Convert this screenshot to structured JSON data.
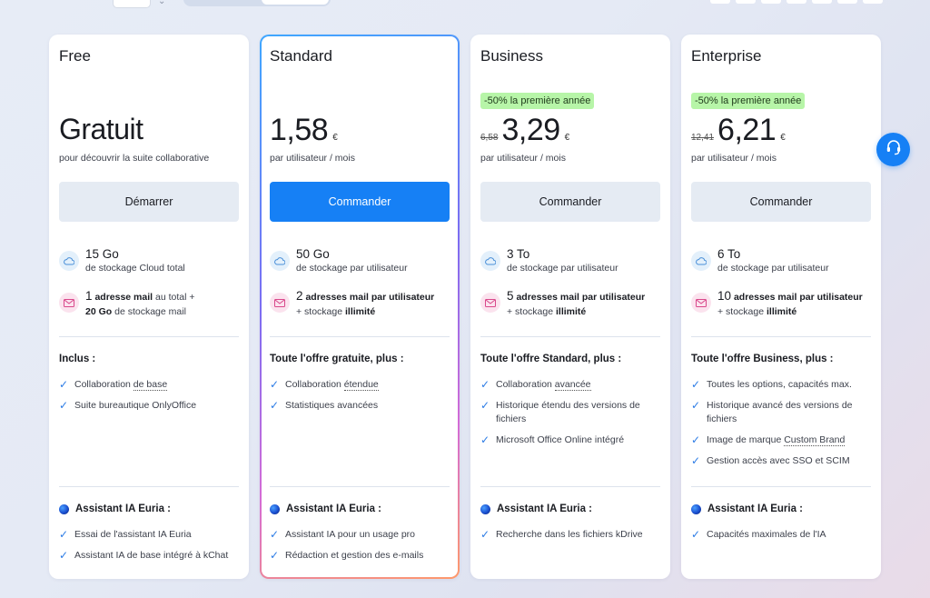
{
  "plans": [
    {
      "name": "Free",
      "price": "Gratuit",
      "period": "pour découvrir la suite collaborative",
      "cta": "Démarrer",
      "storage_main": "15 Go",
      "storage_sub": "de stockage Cloud total",
      "mail_count": "1",
      "mail_label": "adresse mail",
      "mail_rest": "au total +",
      "mail_line2_bold": "20 Go",
      "mail_line2": "de stockage mail",
      "section_title": "Inclus :",
      "features": [
        "Collaboration ",
        "Suite bureautique OnlyOffice"
      ],
      "feature_underline": "de base",
      "ai_title": "Assistant IA Euria :",
      "ai_features": [
        "Essai de l'assistant IA Euria",
        "Assistant IA de base intégré à kChat"
      ]
    },
    {
      "name": "Standard",
      "price": "1,58",
      "currency": "€",
      "period": "par utilisateur / mois",
      "cta": "Commander",
      "storage_main": "50 Go",
      "storage_sub": "de stockage par utilisateur",
      "mail_count": "2",
      "mail_label": "adresses mail par utilisateur",
      "mail_line2_pre": "+ stockage",
      "mail_line2_bold": "illimité",
      "section_title": "Toute l'offre gratuite, plus :",
      "features": [
        "Collaboration ",
        "Statistiques avancées"
      ],
      "feature_underline": "étendue",
      "ai_title": "Assistant IA Euria :",
      "ai_features": [
        "Assistant IA pour un usage pro",
        "Rédaction et gestion des e-mails"
      ]
    },
    {
      "name": "Business",
      "promo": "-50% la première année",
      "old_price": "6,58",
      "price": "3,29",
      "currency": "€",
      "period": "par utilisateur / mois",
      "cta": "Commander",
      "storage_main": "3 To",
      "storage_sub": "de stockage par utilisateur",
      "mail_count": "5",
      "mail_label": "adresses mail par utilisateur",
      "mail_line2_pre": "+ stockage",
      "mail_line2_bold": "illimité",
      "section_title": "Toute l'offre Standard, plus :",
      "features": [
        "Collaboration ",
        "Historique étendu des versions de fichiers",
        "Microsoft Office Online intégré"
      ],
      "feature_underline": "avancée",
      "ai_title": "Assistant IA Euria :",
      "ai_features": [
        "Recherche dans les fichiers kDrive"
      ]
    },
    {
      "name": "Enterprise",
      "promo": "-50% la première année",
      "old_price": "12,41",
      "price": "6,21",
      "currency": "€",
      "period": "par utilisateur / mois",
      "cta": "Commander",
      "storage_main": "6 To",
      "storage_sub": "de stockage par utilisateur",
      "mail_count": "10",
      "mail_label": "adresses mail par utilisateur",
      "mail_line2_pre": "+ stockage",
      "mail_line2_bold": "illimité",
      "section_title": "Toute l'offre Business, plus :",
      "features": [
        "Toutes les options, capacités max.",
        "Historique avancé des versions de fichiers",
        "Image de marque ",
        "Gestion accès avec SSO et SCIM"
      ],
      "feature_underline": "Custom Brand",
      "ai_title": "Assistant IA Euria :",
      "ai_features": [
        "Capacités maximales de l'IA"
      ]
    }
  ],
  "colors": {
    "primary": "#1680f5",
    "promo_bg": "#b7f5a8",
    "button_bg": "#e5ebf3",
    "check": "#2c7be5"
  },
  "icons": [
    "cloud-icon",
    "mail-icon",
    "check-icon",
    "globe-icon",
    "headset-icon",
    "chevron-down-icon"
  ]
}
